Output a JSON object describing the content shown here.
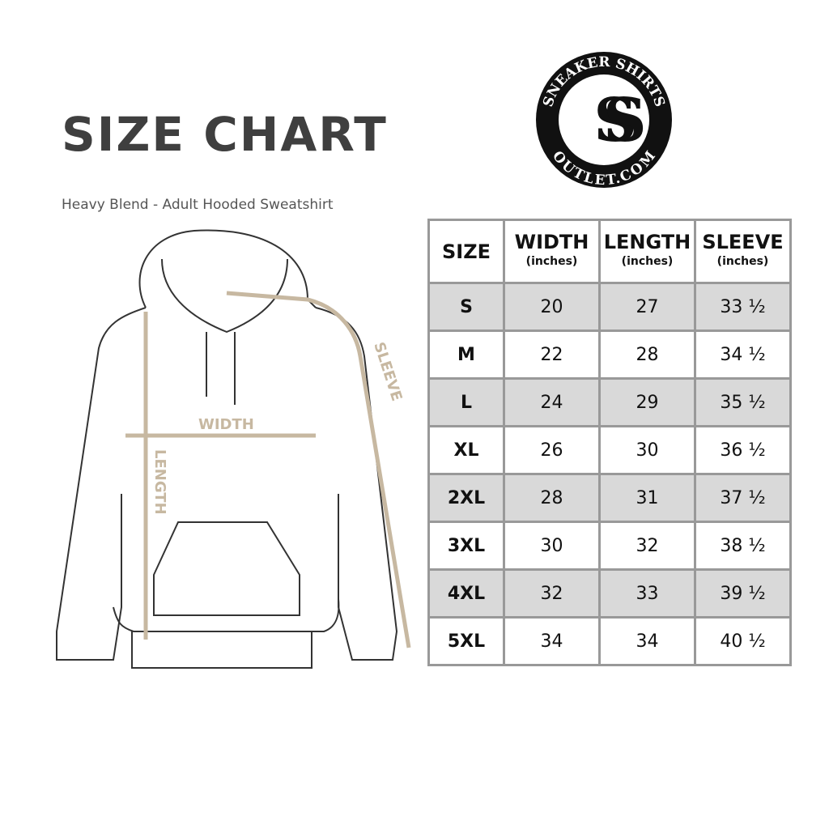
{
  "title": "SIZE CHART",
  "subtitle": "Heavy Blend - Adult Hooded Sweatshirt",
  "logo": {
    "top_text": "SNEAKER SHIRTS",
    "bottom_text": "OUTLET.COM",
    "monogram": "SS"
  },
  "diagram": {
    "width_label": "WIDTH",
    "length_label": "LENGTH",
    "sleeve_label": "SLEEVE",
    "accent_color": "#c7b8a1"
  },
  "table": {
    "headers": [
      {
        "label": "SIZE",
        "unit": ""
      },
      {
        "label": "WIDTH",
        "unit": "(inches)"
      },
      {
        "label": "LENGTH",
        "unit": "(inches)"
      },
      {
        "label": "SLEEVE",
        "unit": "(inches)"
      }
    ],
    "rows": [
      [
        "S",
        "20",
        "27",
        "33 ½"
      ],
      [
        "M",
        "22",
        "28",
        "34 ½"
      ],
      [
        "L",
        "24",
        "29",
        "35 ½"
      ],
      [
        "XL",
        "26",
        "30",
        "36 ½"
      ],
      [
        "2XL",
        "28",
        "31",
        "37 ½"
      ],
      [
        "3XL",
        "30",
        "32",
        "38 ½"
      ],
      [
        "4XL",
        "32",
        "33",
        "39 ½"
      ],
      [
        "5XL",
        "34",
        "34",
        "40 ½"
      ]
    ]
  }
}
